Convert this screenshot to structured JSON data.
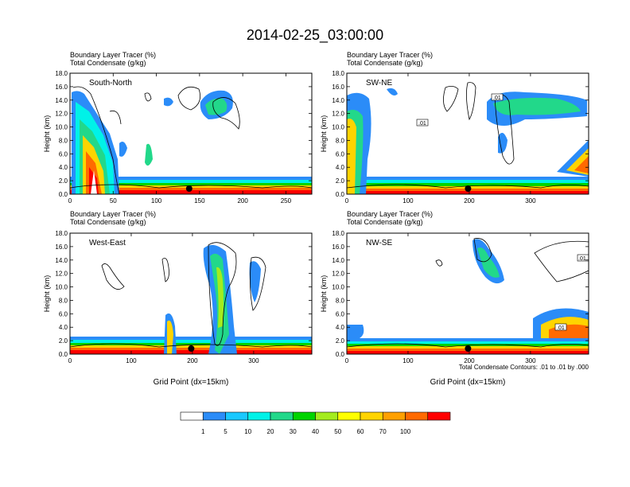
{
  "figure_title": "2014-02-25_03:00:00",
  "panel_titles": [
    "Boundary Layer Tracer   (%)",
    "Total Condensate   (g/kg)"
  ],
  "contour_note": "Total Condensate Contours: .01 to .01 by .000",
  "colorbar": {
    "levels": [
      "1",
      "5",
      "10",
      "20",
      "30",
      "40",
      "50",
      "60",
      "70",
      "100"
    ],
    "colors": [
      "#ffffff",
      "#2b8cf8",
      "#19c8ff",
      "#00f2e8",
      "#22d88a",
      "#00d400",
      "#a4ec1e",
      "#ffff00",
      "#ffd400",
      "#ffa000",
      "#ff6a00",
      "#ff0000"
    ]
  },
  "chart_data": [
    {
      "type": "heatmap",
      "label": "South-North",
      "ylabel": "Height (km)",
      "xlabel": "",
      "xlim": [
        0,
        280
      ],
      "ylim": [
        0,
        18
      ],
      "xticks": [
        "0",
        "50",
        "100",
        "150",
        "200",
        "250"
      ],
      "yticks": [
        "0.0",
        "2.0",
        "4.0",
        "6.0",
        "8.0",
        "10.0",
        "12.0",
        "14.0",
        "16.0",
        "18.0"
      ],
      "marker_x": 138
    },
    {
      "type": "heatmap",
      "label": "SW-NE",
      "ylabel": "Height (km)",
      "xlabel": "",
      "xlim": [
        0,
        395
      ],
      "ylim": [
        0,
        18
      ],
      "xticks": [
        "0",
        "100",
        "200",
        "300"
      ],
      "yticks": [
        "0.0",
        "2.0",
        "4.0",
        "6.0",
        "8.0",
        "10.0",
        "12.0",
        "14.0",
        "16.0",
        "18.0"
      ],
      "contour_labels": [
        ".01",
        ".01"
      ],
      "marker_x": 198
    },
    {
      "type": "heatmap",
      "label": "West-East",
      "ylabel": "Height (km)",
      "xlabel": "Grid Point (dx=15km)",
      "xlim": [
        0,
        395
      ],
      "ylim": [
        0,
        18
      ],
      "xticks": [
        "0",
        "100",
        "200",
        "300"
      ],
      "yticks": [
        "0.0",
        "2.0",
        "4.0",
        "6.0",
        "8.0",
        "10.0",
        "12.0",
        "14.0",
        "16.0",
        "18.0"
      ],
      "marker_x": 198
    },
    {
      "type": "heatmap",
      "label": "NW-SE",
      "ylabel": "Height (km)",
      "xlabel": "Grid Point (dx=15km)",
      "xlim": [
        0,
        395
      ],
      "ylim": [
        0,
        18
      ],
      "xticks": [
        "0",
        "100",
        "200",
        "300"
      ],
      "yticks": [
        "0.0",
        "2.0",
        "4.0",
        "6.0",
        "8.0",
        "10.0",
        "12.0",
        "14.0",
        "16.0",
        "18.0"
      ],
      "contour_labels": [
        ".01",
        ".01"
      ],
      "marker_x": 198
    }
  ]
}
